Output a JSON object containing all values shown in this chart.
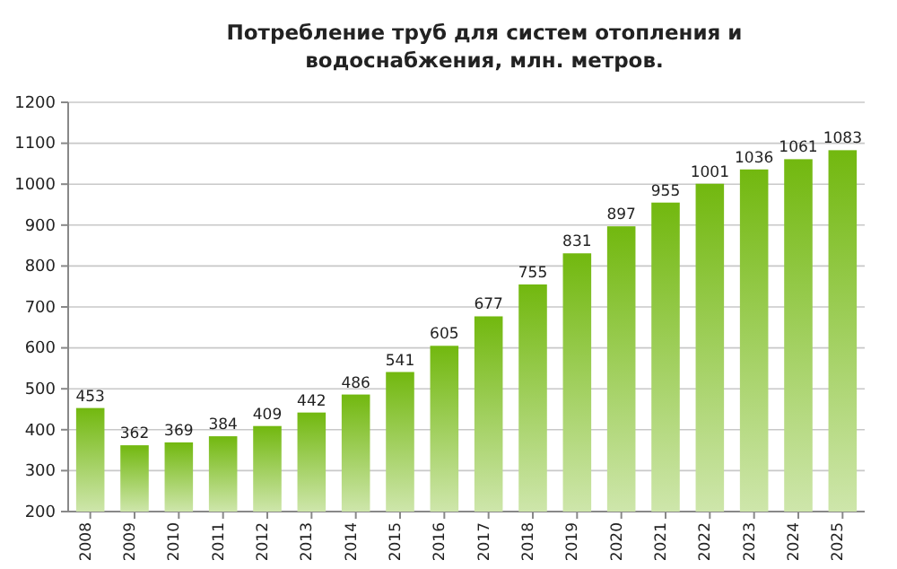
{
  "chart_data": {
    "type": "bar",
    "title": "Потребление труб для систем отопления и водоснабжения, млн. метров.",
    "categories": [
      "2008",
      "2009",
      "2010",
      "2011",
      "2012",
      "2013",
      "2014",
      "2015",
      "2016",
      "2017",
      "2018",
      "2019",
      "2020",
      "2021",
      "2022",
      "2023",
      "2024",
      "2025"
    ],
    "values": [
      453,
      362,
      369,
      384,
      409,
      442,
      486,
      541,
      605,
      677,
      755,
      831,
      897,
      955,
      1001,
      1036,
      1061,
      1083
    ],
    "color": "#72b80f",
    "ylim": [
      200,
      1200
    ],
    "yticks": [
      200,
      300,
      400,
      500,
      600,
      700,
      800,
      900,
      1000,
      1100,
      1200
    ],
    "grid": "y",
    "data_labels": true
  }
}
